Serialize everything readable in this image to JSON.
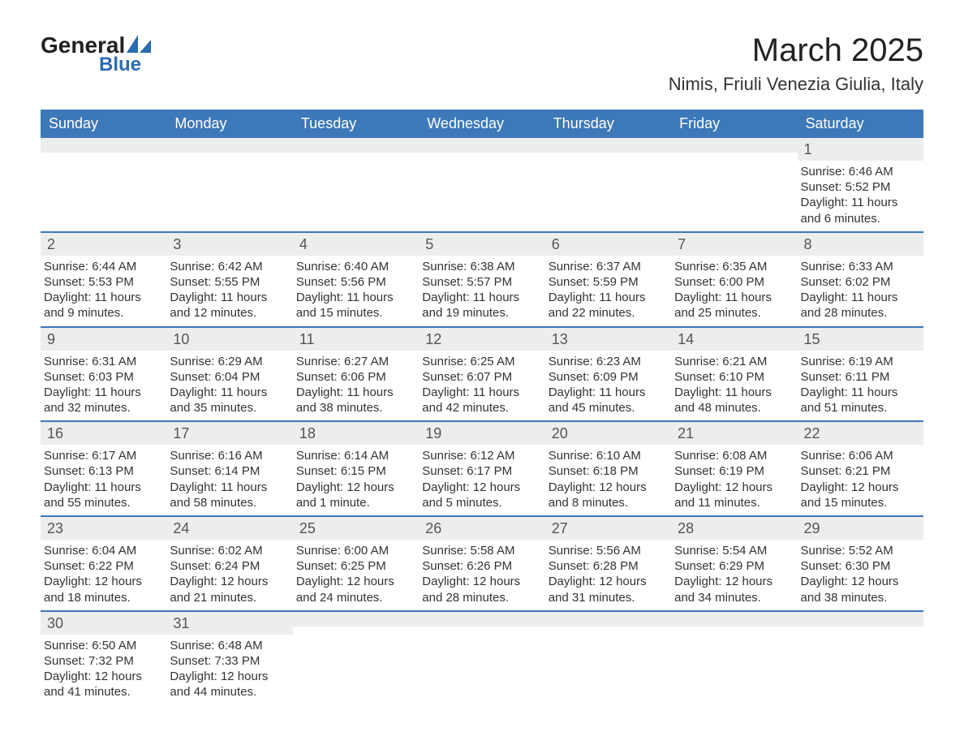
{
  "brand": {
    "word1": "General",
    "word2": "Blue",
    "sail_color": "#2b6cb0",
    "text_color": "#222222"
  },
  "title": {
    "month": "March 2025",
    "location": "Nimis, Friuli Venezia Giulia, Italy",
    "month_fontsize": 40,
    "location_fontsize": 22
  },
  "colors": {
    "header_bg": "#3d78b8",
    "header_fg": "#ffffff",
    "row_divider": "#3d78b8",
    "daynum_bg": "#eceded",
    "text": "#333333",
    "background": "#ffffff"
  },
  "layout": {
    "columns": 7,
    "rows": 6,
    "cell_fontsize": 15,
    "daynum_fontsize": 18,
    "header_fontsize": 18
  },
  "weekdays": [
    "Sunday",
    "Monday",
    "Tuesday",
    "Wednesday",
    "Thursday",
    "Friday",
    "Saturday"
  ],
  "labels": {
    "sunrise": "Sunrise",
    "sunset": "Sunset",
    "daylight": "Daylight"
  },
  "weeks": [
    [
      {
        "blank": true
      },
      {
        "blank": true
      },
      {
        "blank": true
      },
      {
        "blank": true
      },
      {
        "blank": true
      },
      {
        "blank": true
      },
      {
        "n": 1,
        "sunrise": "6:46 AM",
        "sunset": "5:52 PM",
        "daylight": "11 hours and 6 minutes."
      }
    ],
    [
      {
        "n": 2,
        "sunrise": "6:44 AM",
        "sunset": "5:53 PM",
        "daylight": "11 hours and 9 minutes."
      },
      {
        "n": 3,
        "sunrise": "6:42 AM",
        "sunset": "5:55 PM",
        "daylight": "11 hours and 12 minutes."
      },
      {
        "n": 4,
        "sunrise": "6:40 AM",
        "sunset": "5:56 PM",
        "daylight": "11 hours and 15 minutes."
      },
      {
        "n": 5,
        "sunrise": "6:38 AM",
        "sunset": "5:57 PM",
        "daylight": "11 hours and 19 minutes."
      },
      {
        "n": 6,
        "sunrise": "6:37 AM",
        "sunset": "5:59 PM",
        "daylight": "11 hours and 22 minutes."
      },
      {
        "n": 7,
        "sunrise": "6:35 AM",
        "sunset": "6:00 PM",
        "daylight": "11 hours and 25 minutes."
      },
      {
        "n": 8,
        "sunrise": "6:33 AM",
        "sunset": "6:02 PM",
        "daylight": "11 hours and 28 minutes."
      }
    ],
    [
      {
        "n": 9,
        "sunrise": "6:31 AM",
        "sunset": "6:03 PM",
        "daylight": "11 hours and 32 minutes."
      },
      {
        "n": 10,
        "sunrise": "6:29 AM",
        "sunset": "6:04 PM",
        "daylight": "11 hours and 35 minutes."
      },
      {
        "n": 11,
        "sunrise": "6:27 AM",
        "sunset": "6:06 PM",
        "daylight": "11 hours and 38 minutes."
      },
      {
        "n": 12,
        "sunrise": "6:25 AM",
        "sunset": "6:07 PM",
        "daylight": "11 hours and 42 minutes."
      },
      {
        "n": 13,
        "sunrise": "6:23 AM",
        "sunset": "6:09 PM",
        "daylight": "11 hours and 45 minutes."
      },
      {
        "n": 14,
        "sunrise": "6:21 AM",
        "sunset": "6:10 PM",
        "daylight": "11 hours and 48 minutes."
      },
      {
        "n": 15,
        "sunrise": "6:19 AM",
        "sunset": "6:11 PM",
        "daylight": "11 hours and 51 minutes."
      }
    ],
    [
      {
        "n": 16,
        "sunrise": "6:17 AM",
        "sunset": "6:13 PM",
        "daylight": "11 hours and 55 minutes."
      },
      {
        "n": 17,
        "sunrise": "6:16 AM",
        "sunset": "6:14 PM",
        "daylight": "11 hours and 58 minutes."
      },
      {
        "n": 18,
        "sunrise": "6:14 AM",
        "sunset": "6:15 PM",
        "daylight": "12 hours and 1 minute."
      },
      {
        "n": 19,
        "sunrise": "6:12 AM",
        "sunset": "6:17 PM",
        "daylight": "12 hours and 5 minutes."
      },
      {
        "n": 20,
        "sunrise": "6:10 AM",
        "sunset": "6:18 PM",
        "daylight": "12 hours and 8 minutes."
      },
      {
        "n": 21,
        "sunrise": "6:08 AM",
        "sunset": "6:19 PM",
        "daylight": "12 hours and 11 minutes."
      },
      {
        "n": 22,
        "sunrise": "6:06 AM",
        "sunset": "6:21 PM",
        "daylight": "12 hours and 15 minutes."
      }
    ],
    [
      {
        "n": 23,
        "sunrise": "6:04 AM",
        "sunset": "6:22 PM",
        "daylight": "12 hours and 18 minutes."
      },
      {
        "n": 24,
        "sunrise": "6:02 AM",
        "sunset": "6:24 PM",
        "daylight": "12 hours and 21 minutes."
      },
      {
        "n": 25,
        "sunrise": "6:00 AM",
        "sunset": "6:25 PM",
        "daylight": "12 hours and 24 minutes."
      },
      {
        "n": 26,
        "sunrise": "5:58 AM",
        "sunset": "6:26 PM",
        "daylight": "12 hours and 28 minutes."
      },
      {
        "n": 27,
        "sunrise": "5:56 AM",
        "sunset": "6:28 PM",
        "daylight": "12 hours and 31 minutes."
      },
      {
        "n": 28,
        "sunrise": "5:54 AM",
        "sunset": "6:29 PM",
        "daylight": "12 hours and 34 minutes."
      },
      {
        "n": 29,
        "sunrise": "5:52 AM",
        "sunset": "6:30 PM",
        "daylight": "12 hours and 38 minutes."
      }
    ],
    [
      {
        "n": 30,
        "sunrise": "6:50 AM",
        "sunset": "7:32 PM",
        "daylight": "12 hours and 41 minutes."
      },
      {
        "n": 31,
        "sunrise": "6:48 AM",
        "sunset": "7:33 PM",
        "daylight": "12 hours and 44 minutes."
      },
      {
        "blank": true
      },
      {
        "blank": true
      },
      {
        "blank": true
      },
      {
        "blank": true
      },
      {
        "blank": true
      }
    ]
  ]
}
